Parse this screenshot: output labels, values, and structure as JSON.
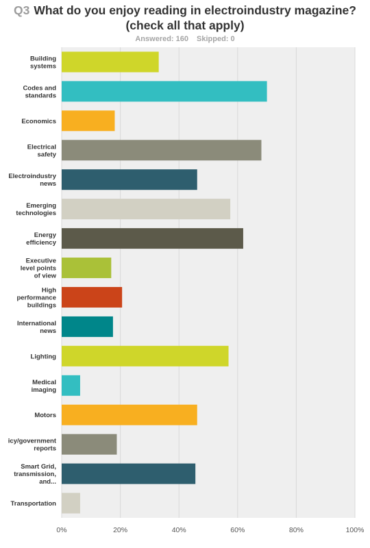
{
  "question": {
    "number": "Q3",
    "title_line1": "What do you enjoy reading in electroindustry magazine?",
    "title_line2": "(check all that apply)",
    "answered": "Answered: 160",
    "skipped": "Skipped: 0"
  },
  "chart_data": {
    "type": "bar",
    "orientation": "horizontal",
    "categories": [
      [
        "Building",
        "systems"
      ],
      [
        "Codes and",
        "standards"
      ],
      [
        "Economics"
      ],
      [
        "Electrical",
        "safety"
      ],
      [
        "Electroindustry",
        "news"
      ],
      [
        "Emerging",
        "technologies"
      ],
      [
        "Energy",
        "efficiency"
      ],
      [
        "Executive",
        "level points",
        "of view"
      ],
      [
        "High",
        "performance",
        "buildings"
      ],
      [
        "International",
        "news"
      ],
      [
        "Lighting"
      ],
      [
        "Medical",
        "imaging"
      ],
      [
        "Motors"
      ],
      [
        "icy/government",
        "reports"
      ],
      [
        "Smart Grid,",
        "transmission,",
        "and..."
      ],
      [
        "Transportation"
      ]
    ],
    "values": [
      33.1,
      70.0,
      18.1,
      68.1,
      46.2,
      57.5,
      61.9,
      16.9,
      20.6,
      17.5,
      56.9,
      6.3,
      46.2,
      18.8,
      45.6,
      6.3
    ],
    "colors": [
      "#cfd62a",
      "#33bec1",
      "#f8af20",
      "#8b8b7a",
      "#2e5e6e",
      "#d2d0c3",
      "#5c5a4a",
      "#aac138",
      "#cb4419",
      "#00868a",
      "#cfd62a",
      "#33bec1",
      "#f8af20",
      "#8b8b7a",
      "#2e5e6e",
      "#d2d0c3"
    ],
    "xlim": [
      0,
      100
    ],
    "xticks": [
      "0%",
      "20%",
      "40%",
      "60%",
      "80%",
      "100%"
    ],
    "grid": true
  }
}
